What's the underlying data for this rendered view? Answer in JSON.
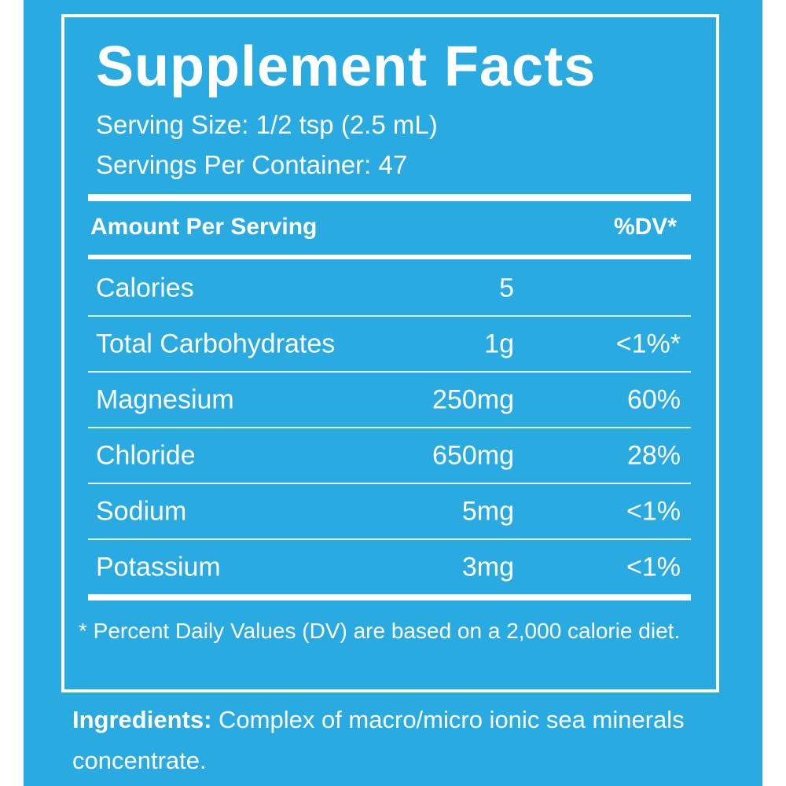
{
  "header": {
    "title": "Supplement Facts",
    "serving_size": "Serving Size: 1/2 tsp (2.5 mL)",
    "servings_per_container": "Servings Per Container: 47"
  },
  "table": {
    "header": [
      "Amount Per Serving",
      "%DV*"
    ],
    "rows": [
      [
        "Calories",
        "5"
      ],
      [
        "Total Carbohydrates",
        "1g",
        "<1%*"
      ],
      [
        "Magnesium",
        "250mg",
        "60%"
      ],
      [
        "Chloride",
        "650mg",
        "28%"
      ],
      [
        "Sodium",
        "5mg",
        "<1%"
      ],
      [
        "Potassium",
        "3mg",
        "<1%"
      ]
    ]
  },
  "footnote": "* Percent Daily Values (DV) are based on a 2,000 calorie diet.",
  "ingredients": {
    "label": "Ingredients:",
    "text": "Complex of macro/micro ionic sea minerals concentrate."
  }
}
